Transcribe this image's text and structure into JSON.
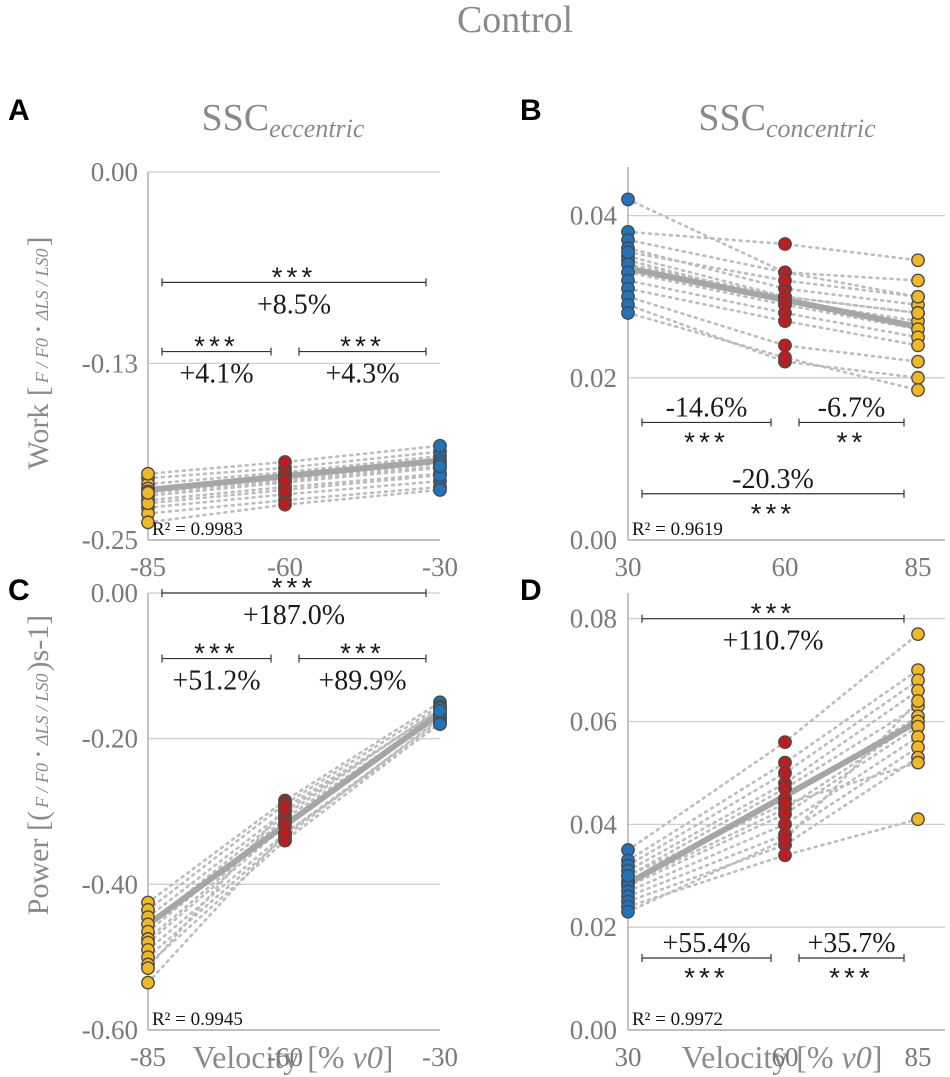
{
  "figure_title": "Control",
  "column_titles": {
    "left": {
      "main": "SSC",
      "sub": "eccentric"
    },
    "right": {
      "main": "SSC",
      "sub": "concentric"
    }
  },
  "y_titles": {
    "work": {
      "prefix": "Work [",
      "frac1": "F / F0",
      "frac2": "ΔLS / LS0",
      "suffix": "]"
    },
    "power": {
      "prefix": "Power [(",
      "frac1": "F / F0",
      "frac2": "ΔLS / LS0",
      "suffix": ")s-1]"
    }
  },
  "x_title": {
    "text": "Velocity [% ",
    "sym": "v0",
    "close": "]"
  },
  "colors": {
    "slow": "#f2b824",
    "mid": "#bf1d1d",
    "fast": "#1f74bb",
    "mean": "#a6a6a6",
    "grid": "#cfcfcf",
    "text": "#8a8a8a"
  },
  "chart_data": [
    {
      "id": "A",
      "type": "scatter",
      "title": "SSC eccentric",
      "ylabel": "Work",
      "x": [
        -85,
        -60,
        -30
      ],
      "x_tick_labels": [
        "-85",
        "-60",
        "-30"
      ],
      "ylim": [
        -0.25,
        0.0
      ],
      "y_ticks": [
        0.0,
        -0.13,
        -0.25
      ],
      "y_tick_labels": [
        "0.00",
        "-0.13",
        "-0.25"
      ],
      "point_colors": [
        "slow",
        "mid",
        "fast"
      ],
      "subjects": [
        [
          -0.208,
          -0.201,
          -0.19
        ],
        [
          -0.212,
          -0.204,
          -0.193
        ],
        [
          -0.215,
          -0.206,
          -0.196
        ],
        [
          -0.217,
          -0.209,
          -0.198
        ],
        [
          -0.205,
          -0.197,
          -0.186
        ],
        [
          -0.22,
          -0.211,
          -0.201
        ],
        [
          -0.223,
          -0.214,
          -0.205
        ],
        [
          -0.228,
          -0.219,
          -0.21
        ],
        [
          -0.232,
          -0.223,
          -0.214
        ],
        [
          -0.225,
          -0.216,
          -0.206
        ],
        [
          -0.218,
          -0.21,
          -0.2
        ],
        [
          -0.238,
          -0.226,
          -0.216
        ]
      ],
      "mean_line": [
        -0.216,
        -0.196
      ],
      "r2": "R² =  0.9983",
      "comparisons": [
        {
          "from": -85,
          "to": -60,
          "label": "+4.1%",
          "stars": "***",
          "y": -0.122,
          "layout": "stars-above"
        },
        {
          "from": -60,
          "to": -30,
          "label": "+4.3%",
          "stars": "***",
          "y": -0.122,
          "layout": "stars-above"
        },
        {
          "from": -85,
          "to": -30,
          "label": "+8.5%",
          "stars": "***",
          "y": -0.075,
          "layout": "stars-above"
        }
      ]
    },
    {
      "id": "B",
      "type": "scatter",
      "title": "SSC concentric",
      "ylabel": "",
      "x": [
        30,
        60,
        85
      ],
      "x_tick_labels": [
        "30",
        "60",
        "85"
      ],
      "ylim": [
        0.0,
        0.046
      ],
      "y_ticks": [
        0.0,
        0.02,
        0.04
      ],
      "y_tick_labels": [
        "0.00",
        "0.02",
        "0.04"
      ],
      "point_colors": [
        "fast",
        "mid",
        "slow"
      ],
      "subjects": [
        [
          0.042,
          0.033,
          0.03
        ],
        [
          0.038,
          0.0365,
          0.0345
        ],
        [
          0.037,
          0.033,
          0.032
        ],
        [
          0.036,
          0.031,
          0.029
        ],
        [
          0.035,
          0.03,
          0.028
        ],
        [
          0.0345,
          0.0295,
          0.027
        ],
        [
          0.034,
          0.03,
          0.028
        ],
        [
          0.033,
          0.029,
          0.026
        ],
        [
          0.032,
          0.028,
          0.025
        ],
        [
          0.031,
          0.027,
          0.024
        ],
        [
          0.03,
          0.024,
          0.022
        ],
        [
          0.029,
          0.022,
          0.02
        ],
        [
          0.028,
          0.0225,
          0.0185
        ],
        [
          0.0355,
          0.032,
          0.03
        ]
      ],
      "mean_line": [
        0.0335,
        0.0263
      ],
      "r2": "R² =  0.9619",
      "comparisons": [
        {
          "from": 30,
          "to": 60,
          "label": "-14.6%",
          "stars": "***",
          "y": 0.0145,
          "layout": "stars-below"
        },
        {
          "from": 60,
          "to": 85,
          "label": "-6.7%",
          "stars": "**",
          "y": 0.0145,
          "layout": "stars-below"
        },
        {
          "from": 30,
          "to": 85,
          "label": "-20.3%",
          "stars": "***",
          "y": 0.0057,
          "layout": "stars-below"
        }
      ]
    },
    {
      "id": "C",
      "type": "scatter",
      "title": "",
      "ylabel": "Power",
      "x": [
        -85,
        -60,
        -30
      ],
      "x_tick_labels": [
        "-85",
        "-60",
        "-30"
      ],
      "ylim": [
        -0.6,
        0.0
      ],
      "y_ticks": [
        0.0,
        -0.2,
        -0.4,
        -0.6
      ],
      "y_tick_labels": [
        "0.00",
        "-0.20",
        "-0.40",
        "-0.60"
      ],
      "point_colors": [
        "slow",
        "mid",
        "fast"
      ],
      "subjects": [
        [
          -0.425,
          -0.285,
          -0.15
        ],
        [
          -0.435,
          -0.29,
          -0.155
        ],
        [
          -0.445,
          -0.3,
          -0.16
        ],
        [
          -0.455,
          -0.305,
          -0.158
        ],
        [
          -0.465,
          -0.31,
          -0.165
        ],
        [
          -0.475,
          -0.315,
          -0.17
        ],
        [
          -0.48,
          -0.32,
          -0.168
        ],
        [
          -0.49,
          -0.33,
          -0.175
        ],
        [
          -0.5,
          -0.335,
          -0.172
        ],
        [
          -0.51,
          -0.34,
          -0.178
        ],
        [
          -0.515,
          -0.295,
          -0.162
        ],
        [
          -0.535,
          -0.33,
          -0.18
        ]
      ],
      "mean_line": [
        -0.455,
        -0.165
      ],
      "r2": "R² =  0.9945",
      "comparisons": [
        {
          "from": -85,
          "to": -60,
          "label": "+51.2%",
          "stars": "***",
          "y": -0.09,
          "layout": "stars-above"
        },
        {
          "from": -60,
          "to": -30,
          "label": "+89.9%",
          "stars": "***",
          "y": -0.09,
          "layout": "stars-above"
        },
        {
          "from": -85,
          "to": -30,
          "label": "+187.0%",
          "stars": "***",
          "y": 0.0,
          "layout": "stars-above"
        }
      ]
    },
    {
      "id": "D",
      "type": "scatter",
      "title": "",
      "ylabel": "",
      "x": [
        30,
        60,
        85
      ],
      "x_tick_labels": [
        "30",
        "60",
        "85"
      ],
      "ylim": [
        0.0,
        0.085
      ],
      "y_ticks": [
        0.0,
        0.02,
        0.04,
        0.06,
        0.08
      ],
      "y_tick_labels": [
        "0.00",
        "0.02",
        "0.04",
        "0.06",
        "0.08"
      ],
      "point_colors": [
        "fast",
        "mid",
        "slow"
      ],
      "subjects": [
        [
          0.035,
          0.056,
          0.077
        ],
        [
          0.033,
          0.052,
          0.07
        ],
        [
          0.032,
          0.05,
          0.068
        ],
        [
          0.031,
          0.048,
          0.066
        ],
        [
          0.03,
          0.047,
          0.063
        ],
        [
          0.029,
          0.045,
          0.061
        ],
        [
          0.0285,
          0.043,
          0.06
        ],
        [
          0.028,
          0.042,
          0.059
        ],
        [
          0.027,
          0.04,
          0.057
        ],
        [
          0.026,
          0.038,
          0.055
        ],
        [
          0.025,
          0.036,
          0.053
        ],
        [
          0.024,
          0.034,
          0.041
        ],
        [
          0.023,
          0.037,
          0.064
        ],
        [
          0.03,
          0.044,
          0.052
        ]
      ],
      "mean_line": [
        0.0285,
        0.06
      ],
      "r2": "R² =  0.9972",
      "comparisons": [
        {
          "from": 30,
          "to": 60,
          "label": "+55.4%",
          "stars": "***",
          "y": 0.014,
          "layout": "stars-below"
        },
        {
          "from": 60,
          "to": 85,
          "label": "+35.7%",
          "stars": "***",
          "y": 0.014,
          "layout": "stars-below"
        },
        {
          "from": 30,
          "to": 85,
          "label": "+110.7%",
          "stars": "***",
          "y": 0.08,
          "layout": "stars-above"
        }
      ]
    }
  ]
}
